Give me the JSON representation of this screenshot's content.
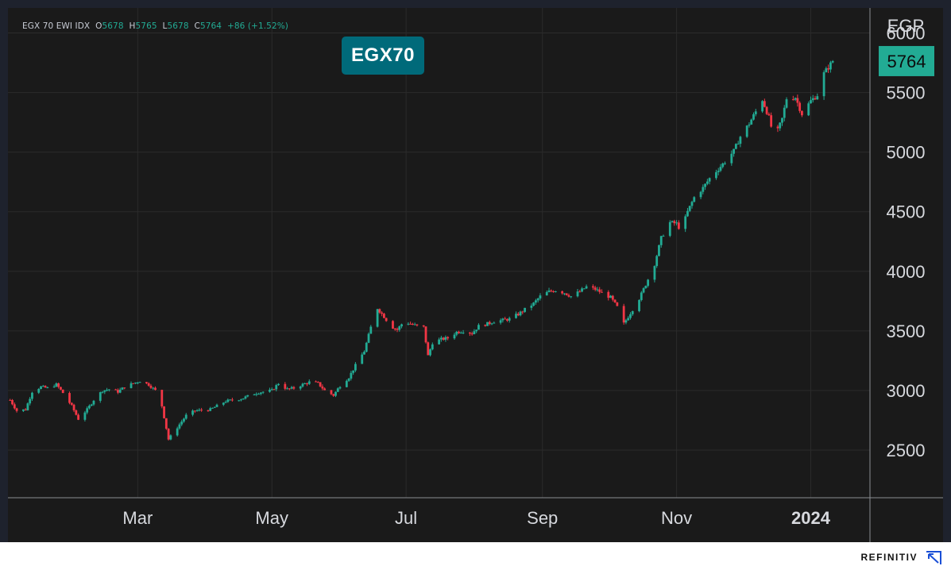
{
  "header": {
    "ticker": "EGX 70 EWI IDX",
    "open_label": "O",
    "open": "5678",
    "high_label": "H",
    "high": "5765",
    "low_label": "L",
    "low": "5678",
    "close_label": "C",
    "close": "5764",
    "change": "+86 (+1.52%)"
  },
  "badge": "EGX70",
  "brand": "REFINITIV",
  "last_price_label": "5764",
  "colors": {
    "up": "#22ab94",
    "down": "#f23645",
    "background": "#1a1a1a",
    "grid": "#2b2b2b",
    "badge": "#006a7a"
  },
  "chart_data": {
    "type": "candlestick",
    "currency_label": "EGP",
    "y_ticks": [
      2500,
      3000,
      3500,
      4000,
      4500,
      5000,
      5500,
      6000
    ],
    "ylim": [
      2100,
      6210
    ],
    "x_ticks": [
      "Mar",
      "May",
      "Jul",
      "Sep",
      "Nov",
      "2024"
    ],
    "last_price": 5764,
    "grid": true,
    "path": [
      [
        "2023-01-02",
        2920
      ],
      [
        "2023-01-05",
        2830
      ],
      [
        "2023-01-09",
        2840
      ],
      [
        "2023-01-12",
        2990
      ],
      [
        "2023-01-16",
        3030
      ],
      [
        "2023-01-19",
        3020
      ],
      [
        "2023-01-23",
        3050
      ],
      [
        "2023-01-26",
        2980
      ],
      [
        "2023-01-30",
        2870
      ],
      [
        "2023-02-02",
        2760
      ],
      [
        "2023-02-06",
        2840
      ],
      [
        "2023-02-09",
        2920
      ],
      [
        "2023-02-13",
        3000
      ],
      [
        "2023-02-16",
        3010
      ],
      [
        "2023-02-20",
        2990
      ],
      [
        "2023-02-23",
        3030
      ],
      [
        "2023-02-27",
        3060
      ],
      [
        "2023-03-02",
        3080
      ],
      [
        "2023-03-06",
        3050
      ],
      [
        "2023-03-09",
        3000
      ],
      [
        "2023-03-12",
        2870
      ],
      [
        "2023-03-15",
        2590
      ],
      [
        "2023-03-19",
        2690
      ],
      [
        "2023-03-23",
        2790
      ],
      [
        "2023-03-27",
        2830
      ],
      [
        "2023-04-03",
        2840
      ],
      [
        "2023-04-10",
        2910
      ],
      [
        "2023-04-17",
        2930
      ],
      [
        "2023-04-24",
        2980
      ],
      [
        "2023-05-01",
        3000
      ],
      [
        "2023-05-04",
        3060
      ],
      [
        "2023-05-08",
        3010
      ],
      [
        "2023-05-11",
        3020
      ],
      [
        "2023-05-15",
        3050
      ],
      [
        "2023-05-18",
        3070
      ],
      [
        "2023-05-22",
        3060
      ],
      [
        "2023-05-25",
        3000
      ],
      [
        "2023-05-29",
        2960
      ],
      [
        "2023-06-01",
        3040
      ],
      [
        "2023-06-05",
        3110
      ],
      [
        "2023-06-08",
        3210
      ],
      [
        "2023-06-12",
        3330
      ],
      [
        "2023-06-15",
        3530
      ],
      [
        "2023-06-18",
        3690
      ],
      [
        "2023-06-21",
        3620
      ],
      [
        "2023-06-24",
        3540
      ],
      [
        "2023-06-27",
        3510
      ],
      [
        "2023-06-30",
        3580
      ],
      [
        "2023-07-03",
        3560
      ],
      [
        "2023-07-06",
        3540
      ],
      [
        "2023-07-09",
        3530
      ],
      [
        "2023-07-11",
        3290
      ],
      [
        "2023-07-13",
        3400
      ],
      [
        "2023-07-17",
        3430
      ],
      [
        "2023-07-20",
        3440
      ],
      [
        "2023-07-24",
        3490
      ],
      [
        "2023-07-27",
        3500
      ],
      [
        "2023-07-31",
        3480
      ],
      [
        "2023-08-03",
        3540
      ],
      [
        "2023-08-07",
        3560
      ],
      [
        "2023-08-10",
        3580
      ],
      [
        "2023-08-14",
        3590
      ],
      [
        "2023-08-17",
        3600
      ],
      [
        "2023-08-21",
        3640
      ],
      [
        "2023-08-24",
        3680
      ],
      [
        "2023-08-28",
        3730
      ],
      [
        "2023-08-31",
        3790
      ],
      [
        "2023-09-04",
        3830
      ],
      [
        "2023-09-07",
        3840
      ],
      [
        "2023-09-11",
        3820
      ],
      [
        "2023-09-14",
        3790
      ],
      [
        "2023-09-18",
        3830
      ],
      [
        "2023-09-21",
        3870
      ],
      [
        "2023-09-25",
        3850
      ],
      [
        "2023-09-28",
        3820
      ],
      [
        "2023-10-02",
        3780
      ],
      [
        "2023-10-05",
        3700
      ],
      [
        "2023-10-08",
        3560
      ],
      [
        "2023-10-11",
        3650
      ],
      [
        "2023-10-15",
        3770
      ],
      [
        "2023-10-18",
        3890
      ],
      [
        "2023-10-22",
        4060
      ],
      [
        "2023-10-25",
        4280
      ],
      [
        "2023-10-29",
        4410
      ],
      [
        "2023-11-01",
        4400
      ],
      [
        "2023-11-03",
        4340
      ],
      [
        "2023-11-06",
        4500
      ],
      [
        "2023-11-09",
        4620
      ],
      [
        "2023-11-13",
        4700
      ],
      [
        "2023-11-16",
        4780
      ],
      [
        "2023-11-20",
        4860
      ],
      [
        "2023-11-23",
        4920
      ],
      [
        "2023-11-27",
        5010
      ],
      [
        "2023-11-30",
        5130
      ],
      [
        "2023-12-04",
        5240
      ],
      [
        "2023-12-07",
        5340
      ],
      [
        "2023-12-10",
        5440
      ],
      [
        "2023-12-13",
        5290
      ],
      [
        "2023-12-15",
        5140
      ],
      [
        "2023-12-17",
        5180
      ],
      [
        "2023-12-19",
        5280
      ],
      [
        "2023-12-21",
        5450
      ],
      [
        "2023-12-25",
        5460
      ],
      [
        "2023-12-28",
        5320
      ],
      [
        "2024-01-01",
        5430
      ],
      [
        "2024-01-04",
        5480
      ],
      [
        "2024-01-07",
        5660
      ],
      [
        "2024-01-11",
        5764
      ]
    ]
  }
}
